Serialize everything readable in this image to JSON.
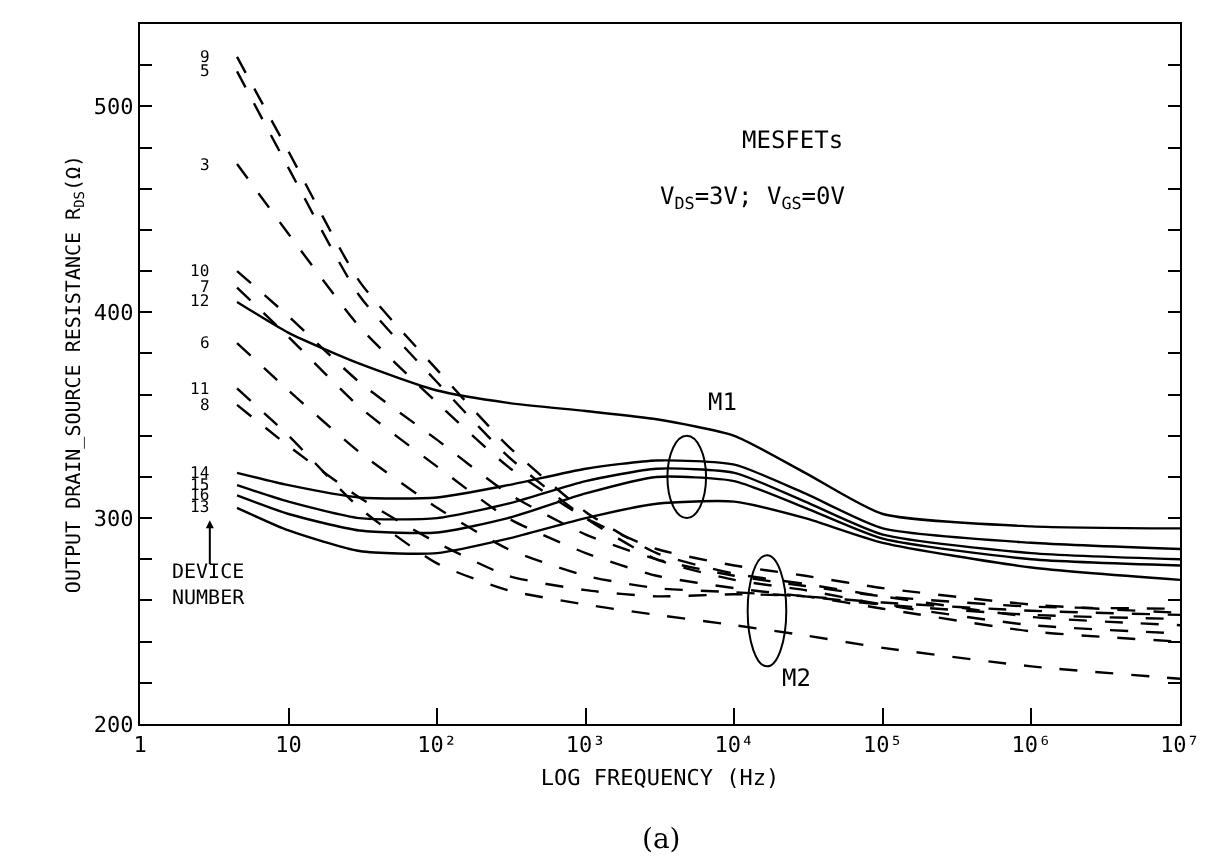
{
  "chart_data": {
    "type": "line",
    "title": "MESFETs",
    "subtitle": "V$_{DS}$=3V; V$_{GS}$=0V",
    "xlabel": "LOG FREQUENCY (Hz)",
    "ylabel": "OUTPUT DRAIN_SOURCE RESISTANCE R$_{DS}$(Ω)",
    "x": [
      4.5,
      10,
      30,
      100,
      300,
      1000,
      3000,
      10000,
      30000,
      100000,
      1000000,
      10000000
    ],
    "series": [
      {
        "name": "9",
        "color": "#000000",
        "line_style": "dashed",
        "values": [
          524,
          478,
          415,
          372,
          335,
          303,
          283,
          273,
          268,
          262,
          252,
          248
        ]
      },
      {
        "name": "5",
        "color": "#000000",
        "line_style": "dashed",
        "values": [
          517,
          470,
          408,
          366,
          330,
          300,
          280,
          270,
          265,
          258,
          248,
          244
        ]
      },
      {
        "name": "3",
        "color": "#000000",
        "line_style": "dashed",
        "values": [
          472,
          438,
          393,
          356,
          325,
          300,
          285,
          277,
          272,
          266,
          258,
          254
        ]
      },
      {
        "name": "10",
        "color": "#000000",
        "line_style": "dashed",
        "values": [
          420,
          398,
          366,
          338,
          312,
          292,
          280,
          272,
          267,
          262,
          257,
          256
        ]
      },
      {
        "name": "7",
        "color": "#000000",
        "line_style": "dashed",
        "values": [
          412,
          388,
          354,
          325,
          300,
          283,
          272,
          266,
          262,
          258,
          253,
          251
        ]
      },
      {
        "name": "12",
        "color": "#000000",
        "line_style": "solid",
        "values": [
          405,
          390,
          375,
          362,
          356,
          352,
          348,
          340,
          322,
          302,
          296,
          295
        ]
      },
      {
        "name": "6",
        "color": "#000000",
        "line_style": "dashed",
        "values": [
          385,
          362,
          332,
          305,
          285,
          272,
          266,
          264,
          262,
          259,
          255,
          253
        ]
      },
      {
        "name": "11",
        "color": "#000000",
        "line_style": "dashed",
        "values": [
          363,
          340,
          305,
          278,
          265,
          258,
          253,
          248,
          243,
          237,
          228,
          222
        ]
      },
      {
        "name": "8",
        "color": "#000000",
        "line_style": "dashed",
        "values": [
          355,
          335,
          310,
          288,
          272,
          265,
          262,
          263,
          262,
          256,
          245,
          240
        ]
      },
      {
        "name": "14",
        "color": "#000000",
        "line_style": "solid",
        "values": [
          322,
          316,
          310,
          310,
          316,
          324,
          328,
          326,
          312,
          295,
          288,
          285
        ]
      },
      {
        "name": "15",
        "color": "#000000",
        "line_style": "solid",
        "values": [
          316,
          308,
          300,
          300,
          307,
          318,
          324,
          322,
          308,
          292,
          283,
          280
        ]
      },
      {
        "name": "16",
        "color": "#000000",
        "line_style": "solid",
        "values": [
          311,
          302,
          294,
          293,
          300,
          312,
          320,
          318,
          305,
          290,
          280,
          277
        ]
      },
      {
        "name": "13",
        "color": "#000000",
        "line_style": "solid",
        "values": [
          305,
          294,
          284,
          283,
          290,
          300,
          307,
          308,
          300,
          288,
          276,
          270
        ]
      }
    ],
    "annotations": [
      "DEVICE NUMBER",
      "M1",
      "M2",
      "(a)"
    ],
    "log": "x",
    "xlim": [
      1,
      10000000
    ],
    "xticks": [
      1,
      10,
      {
        "value": 100,
        "label": "10²"
      },
      {
        "value": 1000,
        "label": "10³"
      },
      {
        "value": 10000,
        "label": "10⁴"
      },
      {
        "value": 100000,
        "label": "10⁵"
      },
      {
        "value": 1000000,
        "label": "10⁶"
      },
      {
        "value": 10000000,
        "label": "10⁷"
      }
    ],
    "ylim": [
      200,
      540
    ],
    "yticks": [
      200,
      {
        "value": 220,
        "label": null
      },
      {
        "value": 240,
        "label": null
      },
      {
        "value": 260,
        "label": null
      },
      {
        "value": 280,
        "label": null
      },
      300,
      {
        "value": 320,
        "label": null
      },
      {
        "value": 340,
        "label": null
      },
      {
        "value": 360,
        "label": null
      },
      {
        "value": 380,
        "label": null
      },
      400,
      {
        "value": 420,
        "label": null
      },
      {
        "value": 440,
        "label": null
      },
      {
        "value": 460,
        "label": null
      },
      {
        "value": 480,
        "label": null
      },
      500,
      {
        "value": 520,
        "label": null
      }
    ],
    "grid": false,
    "legend": false,
    "marker": "none"
  }
}
